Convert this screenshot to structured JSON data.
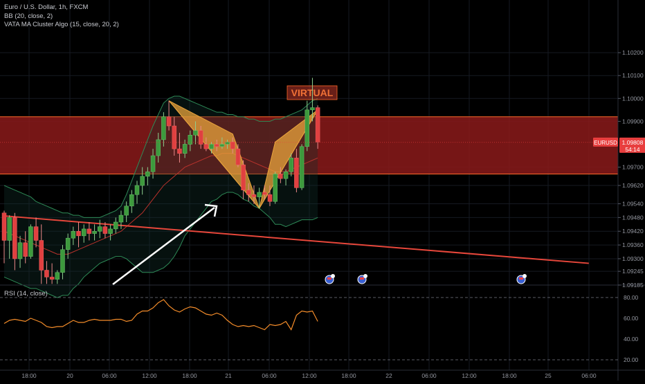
{
  "header": {
    "symbol_line": "Euro / U.S. Dollar, 1h, FXCM",
    "bb_line": "BB (20, close, 2)",
    "vata_line": "VATA MA Cluster Algo (15, close, 20, 2)",
    "rsi_line": "RSI (14, close)"
  },
  "price_badge": {
    "symbol": "EURUSD",
    "price": "1.09808",
    "countdown": "54:14"
  },
  "pattern_label": "VIRTUAL",
  "colors": {
    "up": "#3d9a3d",
    "down": "#e04040",
    "zone": "#8b1a1a",
    "zone_border": "#ff6a2a",
    "pattern": "#e9a43c",
    "trend": "#e8473b",
    "bb": "#2e8b57",
    "rsi": "#f58d2a",
    "arrow": "#ffffff",
    "badge": "#e83e3e"
  },
  "chart_data": [
    {
      "type": "candlestick",
      "title": "Euro / U.S. Dollar, 1h, FXCM",
      "ylim": [
        1.09185,
        1.1043
      ],
      "y_ticks": [
        "1.10200",
        "1.10100",
        "1.10000",
        "1.09900",
        "1.09700",
        "1.09620",
        "1.09540",
        "1.09480",
        "1.09420",
        "1.09360",
        "1.09300",
        "1.09245",
        "1.09185"
      ],
      "x_ticks": [
        "18:00",
        "20",
        "06:00",
        "12:00",
        "18:00",
        "21",
        "06:00",
        "12:00",
        "18:00",
        "22",
        "06:00",
        "12:00",
        "18:00",
        "25",
        "06:00"
      ],
      "last_price": 1.09808,
      "resistance_zone": [
        1.0967,
        1.0992
      ],
      "trend_line": {
        "from": [
          0,
          1.09487
        ],
        "to": [
          110,
          1.0928
        ]
      },
      "harmonic_pattern": [
        [
          31,
          1.0999
        ],
        [
          43,
          1.09845
        ],
        [
          48,
          1.0952
        ],
        [
          51,
          1.0981
        ],
        [
          59,
          1.0995
        ]
      ],
      "candles": [
        [
          1.095,
          1.0951,
          1.0928,
          1.0938
        ],
        [
          1.0938,
          1.0949,
          1.093,
          1.0948
        ],
        [
          1.0948,
          1.095,
          1.0925,
          1.093
        ],
        [
          1.093,
          1.094,
          1.0926,
          1.0937
        ],
        [
          1.0937,
          1.0942,
          1.0928,
          1.0931
        ],
        [
          1.0931,
          1.0945,
          1.093,
          1.0944
        ],
        [
          1.0944,
          1.0948,
          1.0935,
          1.0938
        ],
        [
          1.0938,
          1.0945,
          1.0919,
          1.0925
        ],
        [
          1.0925,
          1.0929,
          1.0919,
          1.0922
        ],
        [
          1.0922,
          1.0928,
          1.0919,
          1.0921
        ],
        [
          1.0921,
          1.0925,
          1.0919,
          1.0924
        ],
        [
          1.0924,
          1.0936,
          1.0921,
          1.0934
        ],
        [
          1.0934,
          1.0941,
          1.093,
          1.0939
        ],
        [
          1.0939,
          1.0944,
          1.0936,
          1.0942
        ],
        [
          1.0942,
          1.0946,
          1.0935,
          1.094
        ],
        [
          1.094,
          1.0945,
          1.0937,
          1.0943
        ],
        [
          1.0943,
          1.0946,
          1.0938,
          1.0941
        ],
        [
          1.0941,
          1.0945,
          1.0938,
          1.0942
        ],
        [
          1.0942,
          1.0947,
          1.0939,
          1.0944
        ],
        [
          1.0944,
          1.0946,
          1.0939,
          1.0941
        ],
        [
          1.0941,
          1.0945,
          1.0938,
          1.0943
        ],
        [
          1.0943,
          1.0948,
          1.0941,
          1.0946
        ],
        [
          1.0946,
          1.0951,
          1.0943,
          1.0949
        ],
        [
          1.0949,
          1.0955,
          1.0946,
          1.0953
        ],
        [
          1.0953,
          1.096,
          1.095,
          1.0958
        ],
        [
          1.0958,
          1.0964,
          1.0954,
          1.0962
        ],
        [
          1.0962,
          1.097,
          1.0958,
          1.0966
        ],
        [
          1.0966,
          1.097,
          1.0962,
          1.0968
        ],
        [
          1.0968,
          1.0978,
          1.0965,
          1.0975
        ],
        [
          1.0975,
          1.0985,
          1.0972,
          1.0982
        ],
        [
          1.0982,
          1.0994,
          1.0979,
          1.0992
        ],
        [
          1.0992,
          1.0999,
          1.0986,
          1.0988
        ],
        [
          1.0988,
          1.0992,
          1.0975,
          1.0978
        ],
        [
          1.0978,
          1.0985,
          1.0972,
          1.0976
        ],
        [
          1.0976,
          1.0982,
          1.0974,
          1.098
        ],
        [
          1.098,
          1.0986,
          1.0977,
          1.0984
        ],
        [
          1.0984,
          1.099,
          1.098,
          1.0986
        ],
        [
          1.0986,
          1.0988,
          1.0978,
          1.098
        ],
        [
          1.098,
          1.0983,
          1.0977,
          1.0978
        ],
        [
          1.0978,
          1.0981,
          1.0976,
          1.098
        ],
        [
          1.098,
          1.0982,
          1.0977,
          1.0979
        ],
        [
          1.0979,
          1.0983,
          1.0978,
          1.098
        ],
        [
          1.098,
          1.0982,
          1.0978,
          1.0981
        ],
        [
          1.0981,
          1.0983,
          1.0976,
          1.0978
        ],
        [
          1.0978,
          1.098,
          1.097,
          1.0971
        ],
        [
          1.0971,
          1.0973,
          1.0956,
          1.096
        ],
        [
          1.096,
          1.0963,
          1.0955,
          1.0958
        ],
        [
          1.0958,
          1.0962,
          1.0954,
          1.0957
        ],
        [
          1.0957,
          1.0961,
          1.0952,
          1.0959
        ],
        [
          1.0959,
          1.0962,
          1.0956,
          1.0958
        ],
        [
          1.0958,
          1.0962,
          1.0953,
          1.0955
        ],
        [
          1.0955,
          1.0968,
          1.0954,
          1.0967
        ],
        [
          1.0967,
          1.097,
          1.0963,
          1.0965
        ],
        [
          1.0965,
          1.0969,
          1.0962,
          1.0968
        ],
        [
          1.0968,
          1.0976,
          1.0966,
          1.0974
        ],
        [
          1.0974,
          1.0978,
          1.0959,
          1.0961
        ],
        [
          1.0961,
          1.098,
          1.096,
          1.0979
        ],
        [
          1.0979,
          1.0999,
          1.0977,
          1.0995
        ],
        [
          1.0995,
          1.1009,
          1.099,
          1.0996
        ],
        [
          1.0996,
          1.0997,
          1.0978,
          1.0981
        ]
      ],
      "bollinger": {
        "upper": [
          1.0962,
          1.0961,
          1.096,
          1.0959,
          1.0958,
          1.0957,
          1.0955,
          1.0954,
          1.0953,
          1.0952,
          1.0951,
          1.095,
          1.095,
          1.0949,
          1.0949,
          1.0948,
          1.0948,
          1.0948,
          1.0948,
          1.0949,
          1.095,
          1.0951,
          1.0953,
          1.0958,
          1.0964,
          1.097,
          1.0976,
          1.0982,
          1.0988,
          1.0993,
          1.0998,
          1.1,
          1.1001,
          1.1001,
          1.1,
          1.0999,
          1.0998,
          1.0997,
          1.0996,
          1.0995,
          1.0994,
          1.0994,
          1.0993,
          1.0993,
          1.0992,
          1.0992,
          1.0991,
          1.0991,
          1.099,
          1.099,
          1.099,
          1.0991,
          1.0991,
          1.0992,
          1.0993,
          1.0994,
          1.0995,
          1.0997,
          1.0999,
          1.1
        ],
        "basis": [
          1.0942,
          1.0941,
          1.094,
          1.0939,
          1.0938,
          1.0937,
          1.0936,
          1.0935,
          1.0934,
          1.0933,
          1.0932,
          1.0932,
          1.0932,
          1.0933,
          1.0934,
          1.0935,
          1.0936,
          1.0937,
          1.0938,
          1.0939,
          1.094,
          1.0941,
          1.0942,
          1.0944,
          1.0946,
          1.0948,
          1.095,
          1.0953,
          1.0956,
          1.0959,
          1.0962,
          1.0964,
          1.0966,
          1.0968,
          1.097,
          1.0971,
          1.0972,
          1.0973,
          1.0974,
          1.0975,
          1.0975,
          1.0976,
          1.0976,
          1.0976,
          1.0975,
          1.0974,
          1.0973,
          1.0972,
          1.0971,
          1.097,
          1.0969,
          1.0968,
          1.0968,
          1.0968,
          1.0969,
          1.097,
          1.0971,
          1.0972,
          1.0973,
          1.0974
        ],
        "lower": [
          1.0922,
          1.0921,
          1.092,
          1.0919,
          1.0918,
          1.0917,
          1.0917,
          1.0916,
          1.0915,
          1.0914,
          1.0913,
          1.0914,
          1.0914,
          1.0917,
          1.0919,
          1.0922,
          1.0924,
          1.0926,
          1.0928,
          1.0929,
          1.093,
          1.0931,
          1.0931,
          1.093,
          1.0928,
          1.0926,
          1.0924,
          1.0924,
          1.0924,
          1.0925,
          1.0926,
          1.0928,
          1.0931,
          1.0935,
          1.094,
          1.0943,
          1.0946,
          1.0949,
          1.0952,
          1.0955,
          1.0956,
          1.0958,
          1.0959,
          1.0959,
          1.0958,
          1.0956,
          1.0955,
          1.0953,
          1.0952,
          1.095,
          1.0948,
          1.0945,
          1.0945,
          1.0944,
          1.0945,
          1.0946,
          1.0947,
          1.0947,
          1.0947,
          1.0948
        ]
      }
    },
    {
      "type": "line",
      "title": "RSI (14, close)",
      "ylim": [
        10,
        90
      ],
      "y_ticks": [
        "80.00",
        "60.00",
        "40.00",
        "20.00"
      ],
      "bands": [
        80,
        20
      ],
      "series": [
        {
          "values": [
            55.0,
            58.0,
            59.0,
            58.0,
            57.0,
            60.0,
            58.0,
            56.0,
            52.0,
            51.0,
            52.0,
            52.0,
            55.0,
            58.0,
            56.0,
            56.0,
            58.0,
            59.0,
            58.0,
            58.0,
            58.0,
            59.0,
            59.0,
            57.0,
            58.0,
            64.0,
            67.0,
            67.0,
            70.0,
            75.0,
            78.0,
            72.0,
            68.0,
            66.0,
            69.0,
            71.0,
            70.0,
            67.0,
            64.0,
            63.0,
            65.0,
            63.0,
            58.0,
            54.0,
            52.0,
            53.0,
            52.0,
            53.0,
            51.0,
            49.0,
            54.0,
            53.0,
            54.0,
            57.0,
            49.0,
            63.0,
            67.0,
            66.0,
            67.0,
            57.0
          ]
        }
      ]
    }
  ]
}
